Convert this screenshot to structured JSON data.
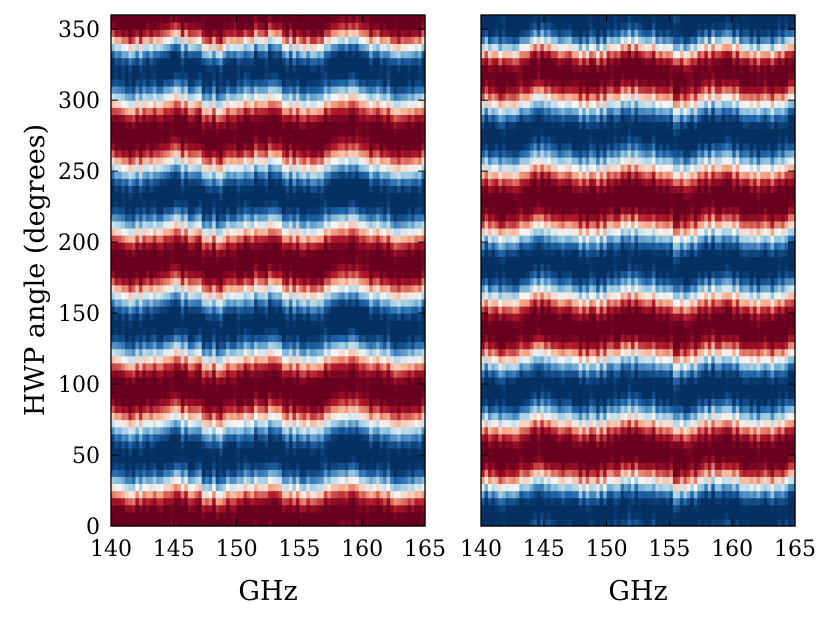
{
  "chart_data": [
    {
      "type": "heatmap",
      "title": "",
      "xlabel": "GHz",
      "ylabel": "HWP angle (degrees)",
      "xlim": [
        140,
        165
      ],
      "ylim": [
        0,
        360
      ],
      "xticks": [
        "140",
        "145",
        "150",
        "155",
        "160",
        "165"
      ],
      "yticks": [
        "0",
        "50",
        "100",
        "150",
        "200",
        "250",
        "300",
        "350"
      ],
      "colormap": "RdBu_r",
      "bands": [
        {
          "center": 5,
          "sign": 1
        },
        {
          "center": 50,
          "sign": -1
        },
        {
          "center": 97,
          "sign": 1
        },
        {
          "center": 142,
          "sign": -1
        },
        {
          "center": 187,
          "sign": 1
        },
        {
          "center": 232,
          "sign": -1
        },
        {
          "center": 277,
          "sign": 1
        },
        {
          "center": 322,
          "sign": -1
        },
        {
          "center": 358,
          "sign": 1
        }
      ]
    },
    {
      "type": "heatmap",
      "title": "",
      "xlabel": "GHz",
      "ylabel": "",
      "xlim": [
        140,
        165
      ],
      "ylim": [
        0,
        360
      ],
      "xticks": [
        "140",
        "145",
        "150",
        "155",
        "160",
        "165"
      ],
      "yticks": [],
      "colormap": "RdBu_r",
      "bands": [
        {
          "center": 10,
          "sign": -1
        },
        {
          "center": 52,
          "sign": 1
        },
        {
          "center": 97,
          "sign": -1
        },
        {
          "center": 140,
          "sign": 1
        },
        {
          "center": 185,
          "sign": -1
        },
        {
          "center": 230,
          "sign": 1
        },
        {
          "center": 277,
          "sign": -1
        },
        {
          "center": 320,
          "sign": 1
        },
        {
          "center": 355,
          "sign": -1
        }
      ]
    }
  ],
  "colors": {
    "deep_red": "#67001f",
    "red": "#b2182b",
    "light_red": "#f4a582",
    "white": "#f7f7f7",
    "light_blue": "#92c5de",
    "blue": "#2166ac",
    "deep_blue": "#053061"
  }
}
